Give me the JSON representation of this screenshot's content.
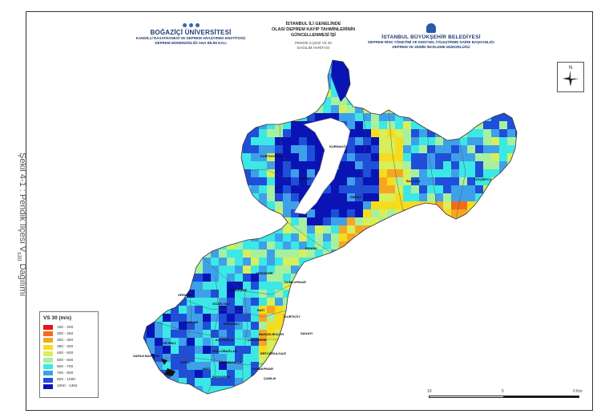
{
  "caption": {
    "text": "Şekil 4-1 : Pendik İlçesi V",
    "sub": "s30",
    "tail": " Dağılımı"
  },
  "header": {
    "left": {
      "name": "BOĞAZİÇİ ÜNİVERSİTESİ",
      "line1": "KANDİLLİ RASATHANESİ VE DEPREM ARAŞTIRMA ENSTİTÜSÜ",
      "line2": "DEPREM MÜHENDİSLİĞİ ANA BİLİM DALI"
    },
    "center": {
      "line1": "İSTANBUL İLİ GENELİNDE",
      "line2": "OLASI DEPREM KAYIP TAHMİNLERİNİN",
      "line3": "GÜNCELLENMESİ İŞİ",
      "line4": "PENDİK İLÇESİ VS 30",
      "line5": "DAĞILIM HARİTASI"
    },
    "right": {
      "name": "İSTANBUL BÜYÜKŞEHİR BELEDİYESİ",
      "line1": "DEPREM RİSK YÖNETİMİ VE KENTSEL İYİLEŞTİRME DAİRE BAŞKANLIĞI",
      "line2": "DEPREM VE ZEMİN İNCELEME MÜDÜRLÜĞÜ"
    }
  },
  "north": {
    "label": "N"
  },
  "legend": {
    "title": "VS 30 (m/s)",
    "items": [
      {
        "label": "150 - 200",
        "color": "#e8141c"
      },
      {
        "label": "200 - 250",
        "color": "#f26b1d"
      },
      {
        "label": "300 - 350",
        "color": "#f5a623"
      },
      {
        "label": "350 - 400",
        "color": "#f7dc1e"
      },
      {
        "label": "400 - 500",
        "color": "#d6ef5a"
      },
      {
        "label": "500 - 600",
        "color": "#a6f0a0"
      },
      {
        "label": "600 - 700",
        "color": "#3ce8e6"
      },
      {
        "label": "700 - 800",
        "color": "#3fa0ea"
      },
      {
        "label": "800 - 1000",
        "color": "#1f4fd8"
      },
      {
        "label": "1000 - 1392",
        "color": "#0a14b4"
      }
    ]
  },
  "scale": {
    "labels": [
      "10",
      "5",
      "0 Km"
    ]
  },
  "places": [
    "KURTDOĞMUŞ",
    "EMİRLİ",
    "KURNAKÖY",
    "BALLICA",
    "GÖÇBEYLİ",
    "EMİRLİ",
    "PENDİK",
    "YENİŞEHİR",
    "ÇAMÇEŞME",
    "ORHANLI",
    "DUMLUPINAR",
    "GÜZELYALI",
    "BATI",
    "YAYALAR",
    "ESENYALI",
    "KAYNARCA",
    "SAPAN BAĞLARI",
    "SEVİMLİ",
    "GÜLLÜBAĞLAR",
    "BAHÇELİEVLER",
    "SANAYİ",
    "ERTUĞRULGAZİ",
    "KURTKÖY",
    "ÇINARDERE",
    "KAVAKPINAR",
    "YENİMAHALLE",
    "DOĞU",
    "BATI",
    "KAYNARCA",
    "ÇAMLIK"
  ]
}
